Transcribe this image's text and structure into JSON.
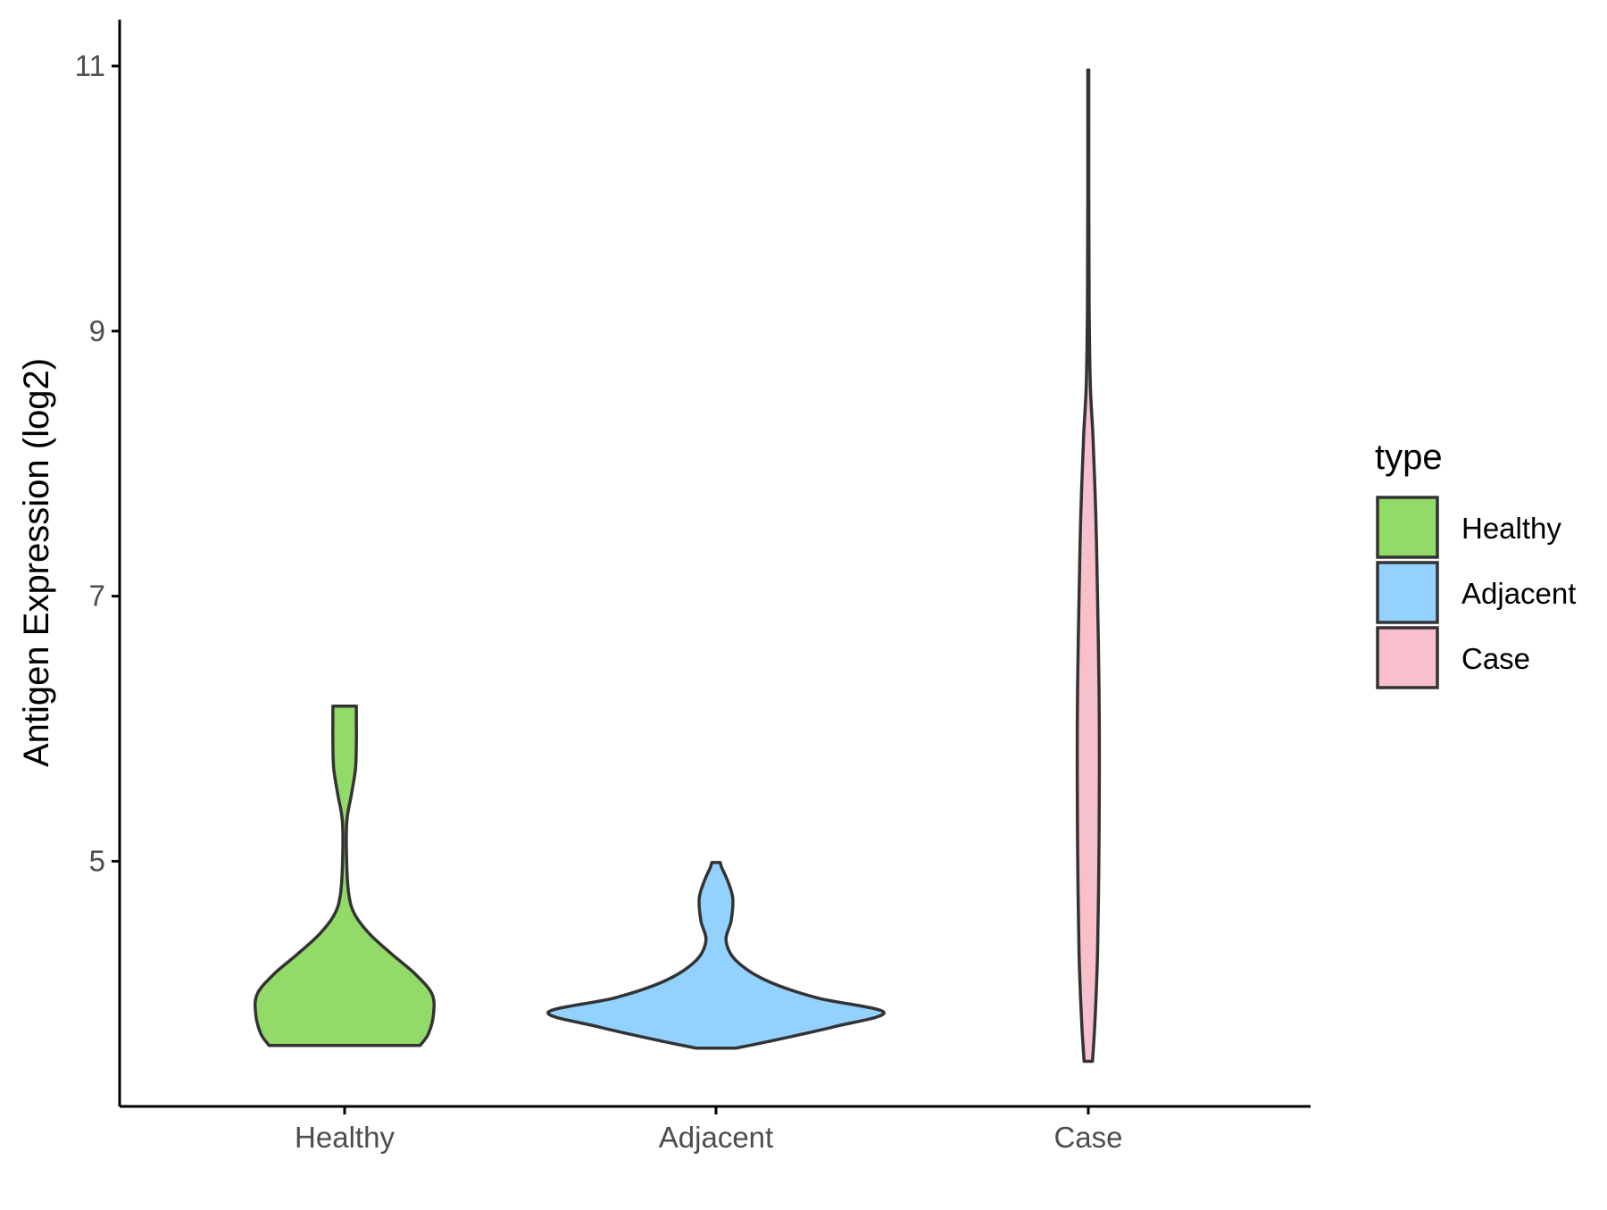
{
  "chart_data": {
    "type": "violin",
    "xlabel": "",
    "ylabel": "Antigen Expression (log2)",
    "categories": [
      "Healthy",
      "Adjacent",
      "Case"
    ],
    "y_ticks": [
      5,
      7,
      9,
      11
    ],
    "ylim": [
      3.15,
      11.35
    ],
    "grid": false,
    "legend": {
      "title": "type",
      "position": "right",
      "entries": [
        "Healthy",
        "Adjacent",
        "Case"
      ]
    },
    "colors": {
      "Healthy": "#93DB69",
      "Adjacent": "#93D2FE",
      "Case": "#F7C0CC",
      "outline": "#333333"
    },
    "series": [
      {
        "category": "Healthy",
        "min": 3.61,
        "max": 6.17,
        "density": [
          [
            3.61,
            0.45
          ],
          [
            3.7,
            0.5
          ],
          [
            3.85,
            0.53
          ],
          [
            4.0,
            0.52
          ],
          [
            4.15,
            0.42
          ],
          [
            4.3,
            0.28
          ],
          [
            4.45,
            0.15
          ],
          [
            4.6,
            0.06
          ],
          [
            4.75,
            0.025
          ],
          [
            5.0,
            0.012
          ],
          [
            5.3,
            0.013
          ],
          [
            5.5,
            0.04
          ],
          [
            5.7,
            0.065
          ],
          [
            5.9,
            0.07
          ],
          [
            6.05,
            0.07
          ],
          [
            6.17,
            0.07
          ]
        ]
      },
      {
        "category": "Adjacent",
        "min": 3.59,
        "max": 4.99,
        "density": [
          [
            3.59,
            0.12
          ],
          [
            3.65,
            0.35
          ],
          [
            3.75,
            0.7
          ],
          [
            3.86,
            1.0
          ],
          [
            3.97,
            0.6
          ],
          [
            4.1,
            0.3
          ],
          [
            4.25,
            0.12
          ],
          [
            4.4,
            0.06
          ],
          [
            4.55,
            0.09
          ],
          [
            4.72,
            0.1
          ],
          [
            4.85,
            0.07
          ],
          [
            4.95,
            0.035
          ],
          [
            4.99,
            0.025
          ]
        ]
      },
      {
        "category": "Case",
        "min": 3.49,
        "max": 10.97,
        "density": [
          [
            3.49,
            0.025
          ],
          [
            3.8,
            0.04
          ],
          [
            4.3,
            0.055
          ],
          [
            5.0,
            0.063
          ],
          [
            5.7,
            0.066
          ],
          [
            6.3,
            0.064
          ],
          [
            7.0,
            0.055
          ],
          [
            7.6,
            0.045
          ],
          [
            8.2,
            0.028
          ],
          [
            8.6,
            0.012
          ],
          [
            9.2,
            0.005
          ],
          [
            10.0,
            0.003
          ],
          [
            10.97,
            0.003
          ]
        ]
      }
    ]
  }
}
